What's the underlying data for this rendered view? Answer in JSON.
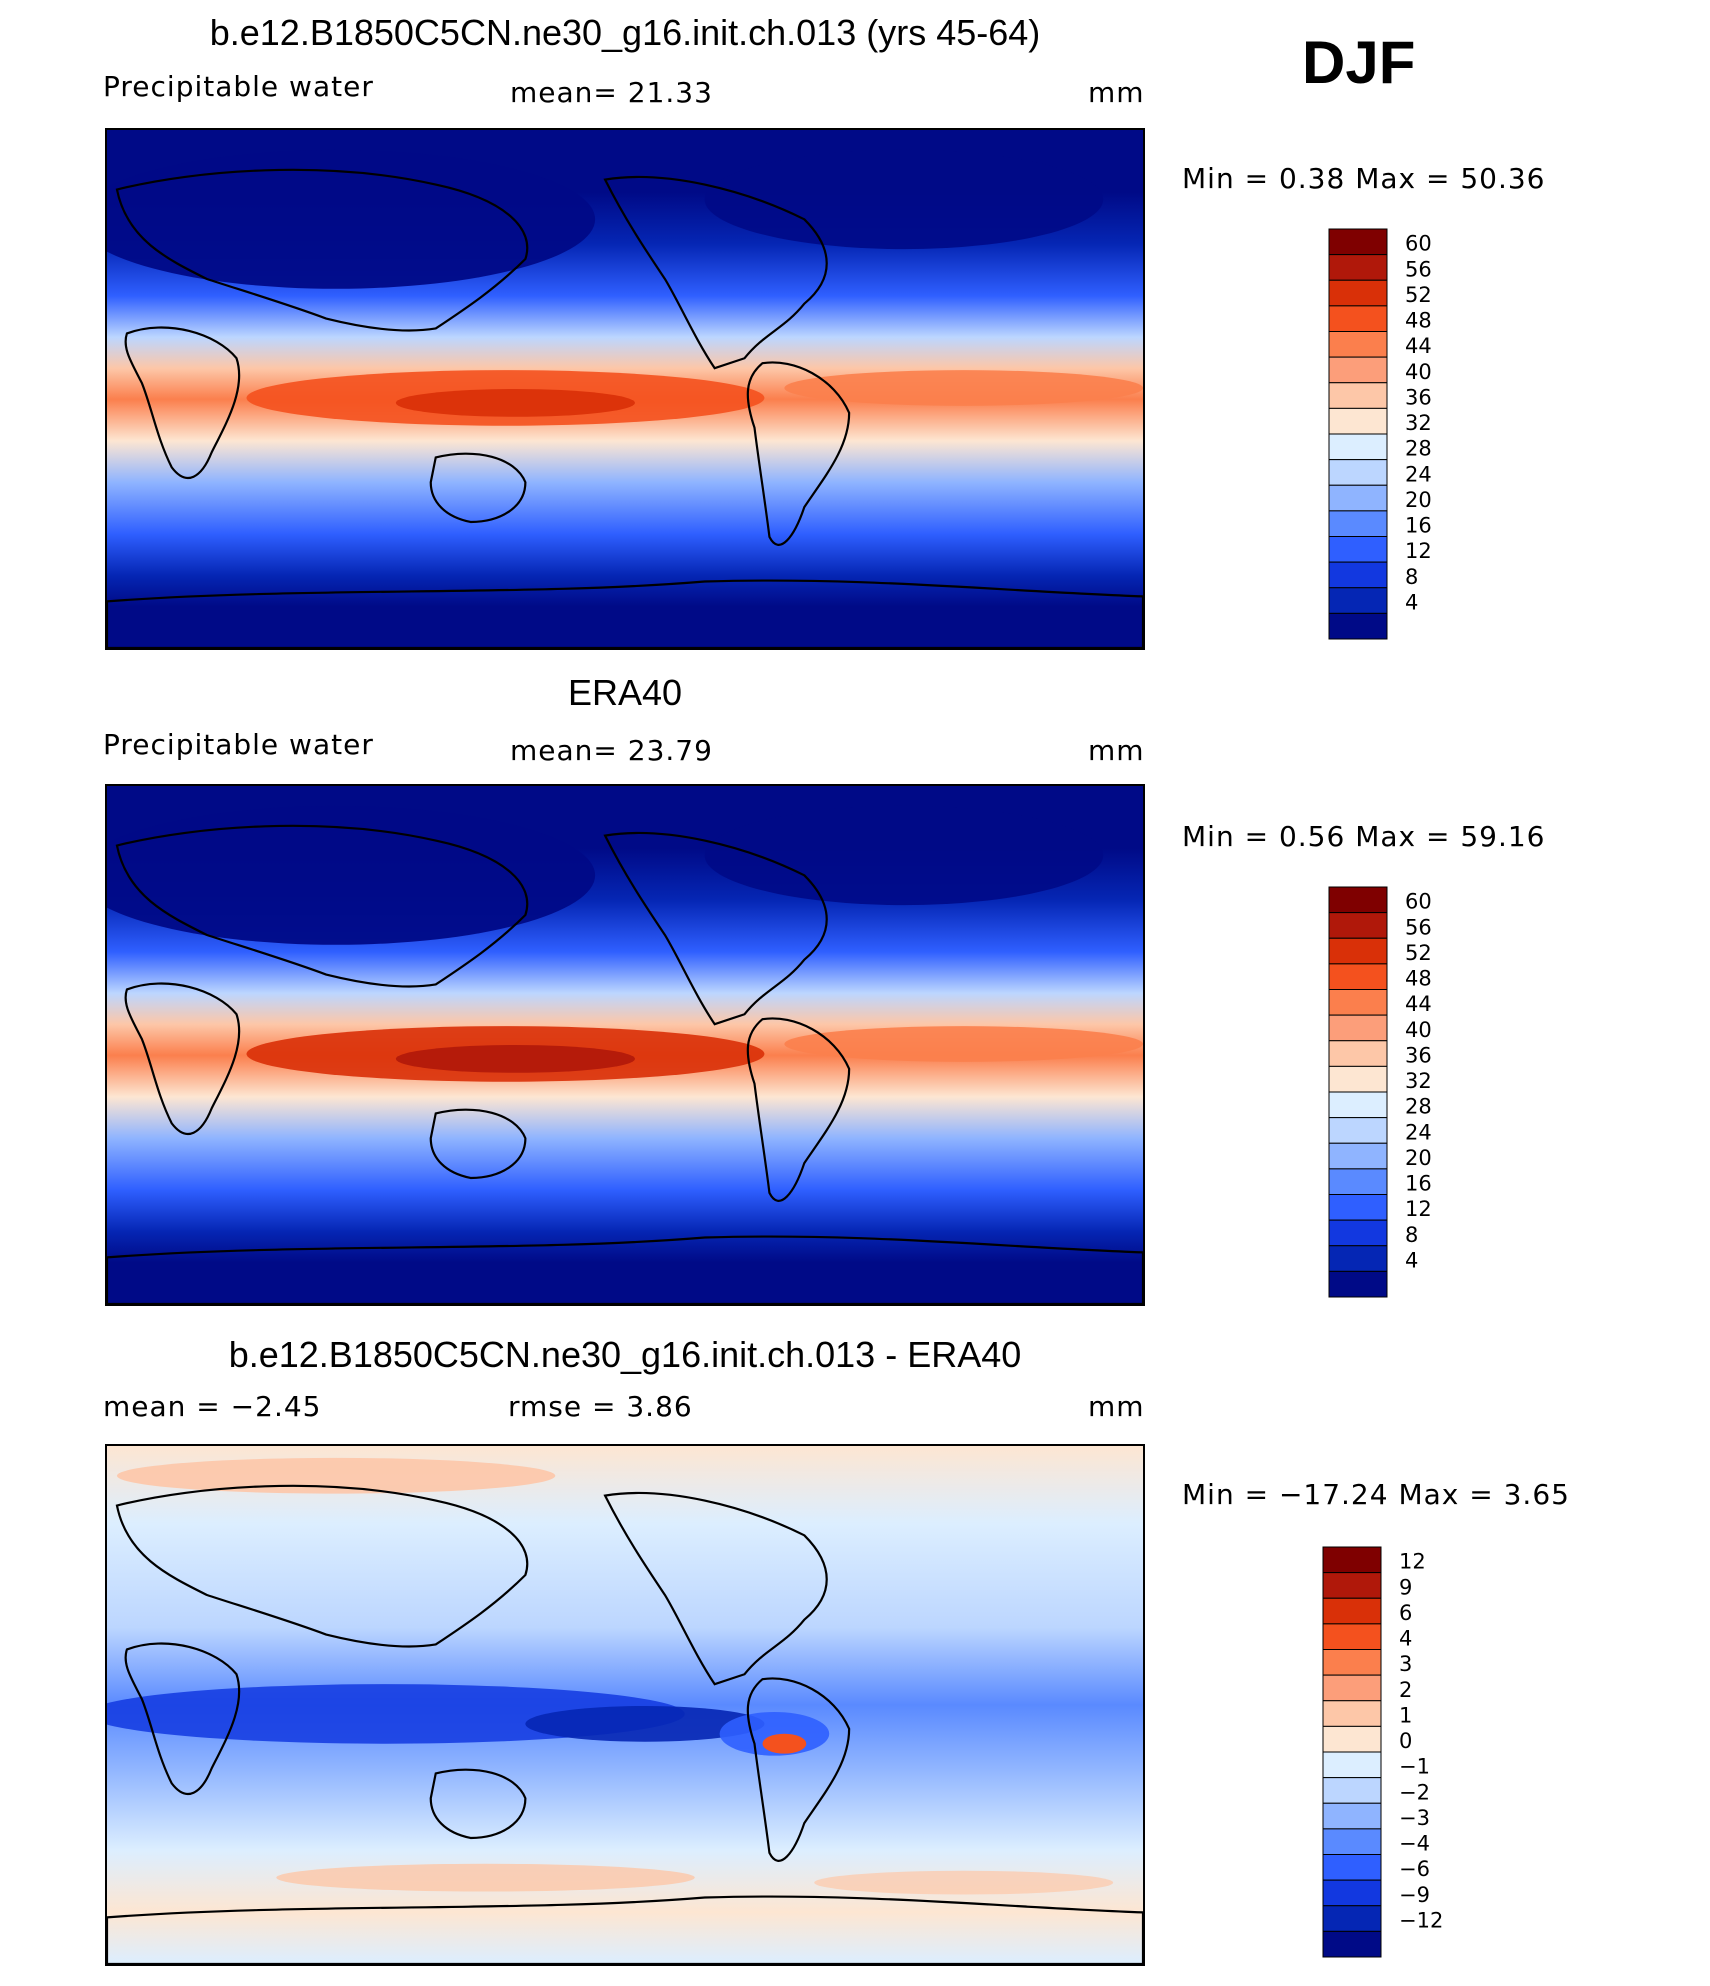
{
  "season": "DJF",
  "panels": [
    {
      "title": "b.e12.B1850C5CN.ne30_g16.init.ch.013 (yrs 45-64)",
      "left_label": "Precipitable  water",
      "center_label": "mean=   21.33",
      "units": "mm",
      "minmax": "Min  =     0.38  Max  =    50.36",
      "field": "model",
      "colorbar_labels": [
        "60",
        "56",
        "52",
        "48",
        "44",
        "40",
        "36",
        "32",
        "28",
        "24",
        "20",
        "16",
        "12",
        "8",
        "4"
      ],
      "colorbar_colors": [
        "#7f0000",
        "#b0180a",
        "#d93008",
        "#f4511e",
        "#fb7f4d",
        "#fc9e7a",
        "#fdc7a8",
        "#fde6d2",
        "#dceeff",
        "#bcd6ff",
        "#8fb4ff",
        "#5a8aff",
        "#2f5fff",
        "#1238e0",
        "#0526b4",
        "#000a87"
      ],
      "ticks": "right"
    },
    {
      "title": "ERA40",
      "left_label": "Precipitable  water",
      "center_label": "mean=   23.79",
      "units": "mm",
      "minmax": "Min  =     0.56  Max  =    59.16",
      "field": "obs",
      "colorbar_labels": [
        "60",
        "56",
        "52",
        "48",
        "44",
        "40",
        "36",
        "32",
        "28",
        "24",
        "20",
        "16",
        "12",
        "8",
        "4"
      ],
      "colorbar_colors": [
        "#7f0000",
        "#b0180a",
        "#d93008",
        "#f4511e",
        "#fb7f4d",
        "#fc9e7a",
        "#fdc7a8",
        "#fde6d2",
        "#dceeff",
        "#bcd6ff",
        "#8fb4ff",
        "#5a8aff",
        "#2f5fff",
        "#1238e0",
        "#0526b4",
        "#000a87"
      ],
      "ticks": "right"
    },
    {
      "title": "b.e12.B1850C5CN.ne30_g16.init.ch.013 - ERA40",
      "left_label": "mean  =    −2.45",
      "center_label": "rmse  =     3.86",
      "units": "mm",
      "minmax": "Min  =  −17.24  Max  =     3.65",
      "field": "diff",
      "colorbar_labels": [
        "12",
        "9",
        "6",
        "4",
        "3",
        "2",
        "1",
        "0",
        "−1",
        "−2",
        "−3",
        "−4",
        "−6",
        "−9",
        "−12"
      ],
      "colorbar_colors": [
        "#7f0000",
        "#b0180a",
        "#d93008",
        "#f4511e",
        "#fb7f4d",
        "#fc9e7a",
        "#fdc7a8",
        "#fde6d2",
        "#dceeff",
        "#bcd6ff",
        "#8fb4ff",
        "#5a8aff",
        "#2f5fff",
        "#1238e0",
        "#0526b4",
        "#000a87"
      ],
      "ticks": "right"
    }
  ]
}
